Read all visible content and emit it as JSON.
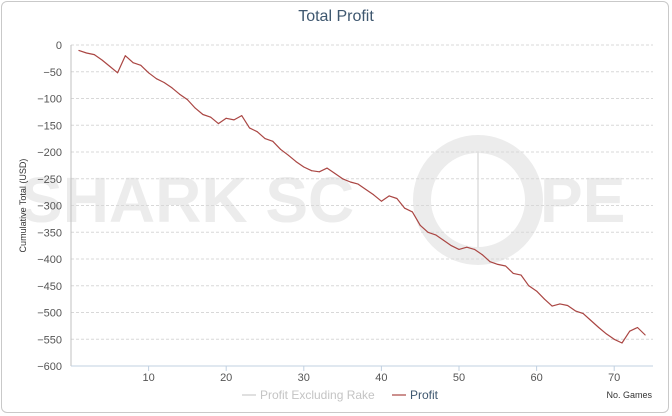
{
  "chart_data": {
    "type": "line",
    "title": "Total Profit",
    "ylabel": "Cumulative Total (USD)",
    "xlabel": "No. Games",
    "xlim": [
      0,
      75
    ],
    "ylim": [
      -600,
      0
    ],
    "xticks": [
      10,
      20,
      30,
      40,
      50,
      60,
      70
    ],
    "yticks": [
      0,
      -50,
      -100,
      -150,
      -200,
      -250,
      -300,
      -350,
      -400,
      -450,
      -500,
      -550,
      -600
    ],
    "watermark": [
      "SHARK SC",
      "PE"
    ],
    "legend": [
      {
        "name": "Profit Excluding Rake",
        "color": "#cccccc",
        "active": false
      },
      {
        "name": "Profit",
        "color": "#aa4643",
        "active": true
      }
    ],
    "series": [
      {
        "name": "Profit",
        "color": "#aa4643",
        "x": [
          1,
          2,
          3,
          4,
          5,
          6,
          7,
          8,
          9,
          10,
          11,
          12,
          13,
          14,
          15,
          16,
          17,
          18,
          19,
          20,
          21,
          22,
          23,
          24,
          25,
          26,
          27,
          28,
          29,
          30,
          31,
          32,
          33,
          34,
          35,
          36,
          37,
          38,
          39,
          40,
          41,
          42,
          43,
          44,
          45,
          46,
          47,
          48,
          49,
          50,
          51,
          52,
          53,
          54,
          55,
          56,
          57,
          58,
          59,
          60,
          61,
          62,
          63,
          64,
          65,
          66,
          67,
          68,
          69,
          70,
          71,
          72,
          73,
          74
        ],
        "values": [
          -10,
          -15,
          -18,
          -28,
          -40,
          -52,
          -20,
          -33,
          -38,
          -52,
          -63,
          -70,
          -80,
          -92,
          -102,
          -118,
          -130,
          -135,
          -147,
          -137,
          -140,
          -132,
          -155,
          -162,
          -175,
          -180,
          -195,
          -206,
          -218,
          -228,
          -235,
          -237,
          -230,
          -240,
          -250,
          -256,
          -260,
          -270,
          -280,
          -292,
          -282,
          -287,
          -305,
          -312,
          -337,
          -350,
          -355,
          -365,
          -375,
          -382,
          -378,
          -382,
          -392,
          -405,
          -410,
          -413,
          -427,
          -430,
          -450,
          -460,
          -475,
          -488,
          -484,
          -487,
          -497,
          -502,
          -515,
          -528,
          -540,
          -550,
          -557,
          -535,
          -528,
          -542
        ]
      }
    ]
  }
}
